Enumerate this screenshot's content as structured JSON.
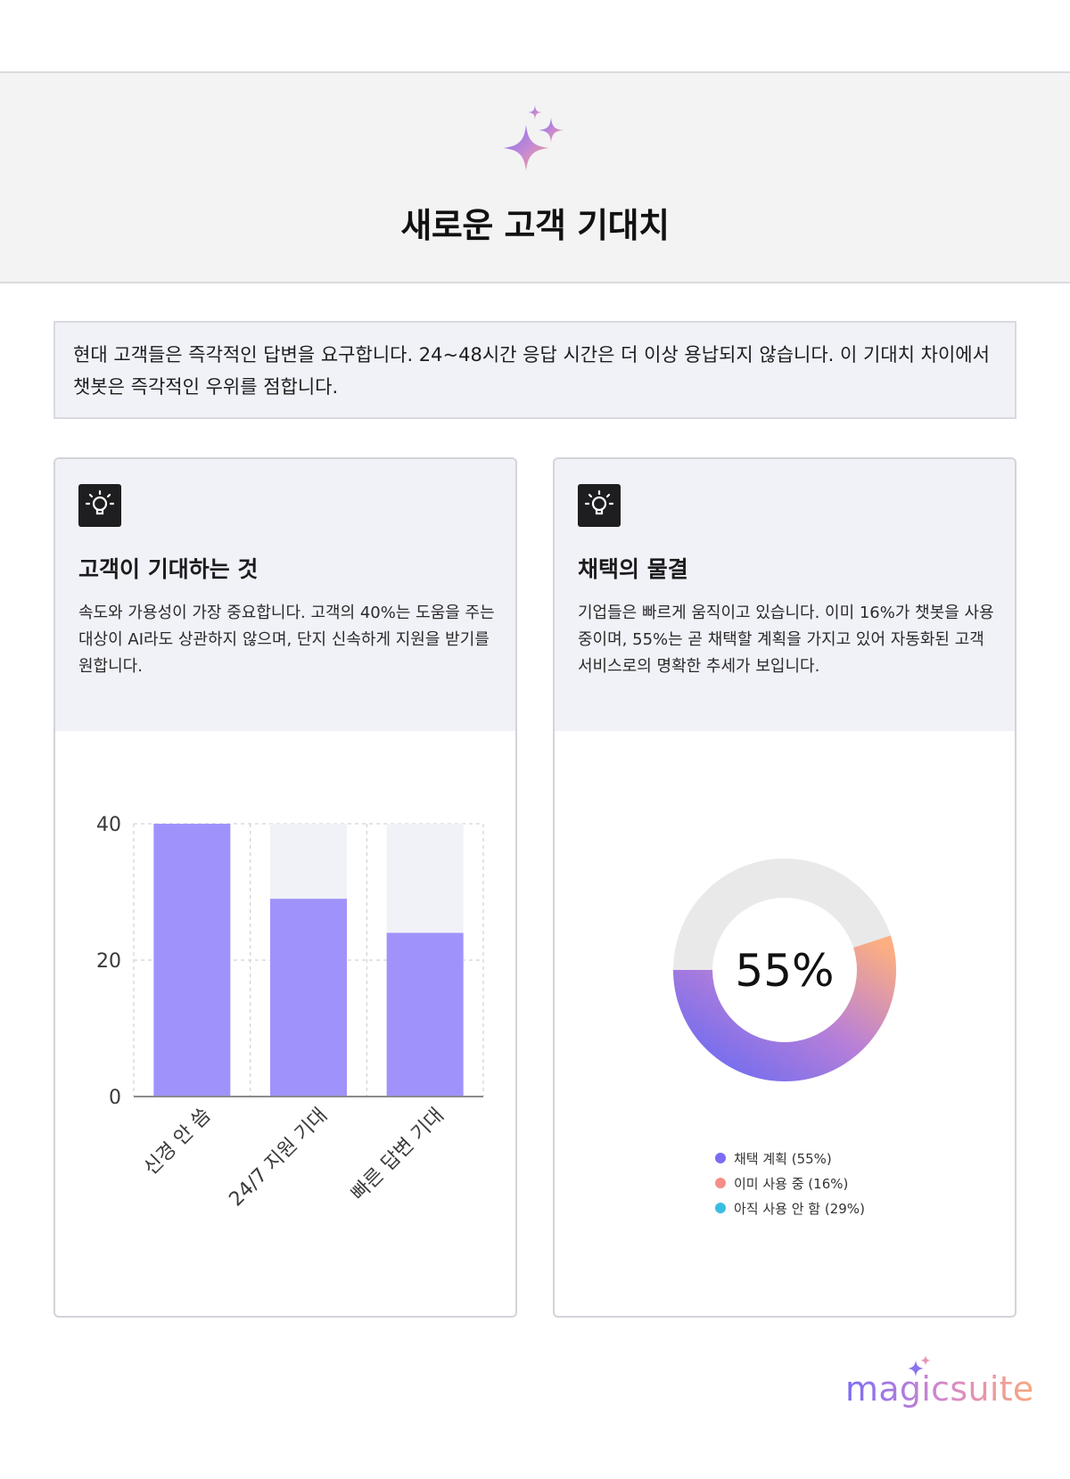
{
  "header": {
    "title": "새로운 고객 기대치",
    "icon": "sparkle-icon"
  },
  "intro": {
    "text": "현대 고객들은 즉각적인 답변을 요구합니다. 24~48시간 응답 시간은 더 이상 용납되지 않습니다. 이 기대치 차이에서 챗봇은 즉각적인 우위를 점합니다."
  },
  "cards": [
    {
      "icon": "lightbulb-icon",
      "title": "고객이 기대하는 것",
      "description": "속도와 가용성이 가장 중요합니다. 고객의 40%는 도움을 주는 대상이 AI라도 상관하지 않으며, 단지 신속하게 지원을 받기를 원합니다."
    },
    {
      "icon": "lightbulb-icon",
      "title": "채택의 물결",
      "description": "기업들은 빠르게 움직이고 있습니다. 이미 16%가 챗봇을 사용 중이며, 55%는 곧 채택할 계획을 가지고 있어 자동화된 고객 서비스로의 명확한 추세가 보입니다."
    }
  ],
  "chart_data": [
    {
      "type": "bar",
      "categories": [
        "신경 안 씀",
        "24/7 지원 기대",
        "빠른 답변 기대"
      ],
      "values": [
        40,
        29,
        24
      ],
      "ylim": [
        0,
        40
      ],
      "yticks": [
        0,
        20,
        40
      ],
      "grid": true,
      "colors": {
        "bar": "#9f93fb",
        "track": "#f1f2f7",
        "axis": "#8a8a8e",
        "grid": "#c9c9cf"
      }
    },
    {
      "type": "pie",
      "style": "donut",
      "center_label": "55%",
      "slices": [
        {
          "name": "채택 계획 (55%)",
          "value": 55,
          "color": "#7a6cf4"
        },
        {
          "name": "이미 사용 중 (16%)",
          "value": 16,
          "color": "#f58f88"
        },
        {
          "name": "아직 사용 안 함 (29%)",
          "value": 29,
          "color": "#38bde0"
        }
      ],
      "highlighted_value": 55,
      "colors": {
        "track": "#e9e9ea",
        "gradient_start": "#6f6cf0",
        "gradient_mid": "#b77fd8",
        "gradient_end": "#fcae82"
      },
      "legend_position": "bottom-center"
    }
  ],
  "brand": {
    "name": "magicsuite",
    "icon": "sparkle-icon"
  }
}
